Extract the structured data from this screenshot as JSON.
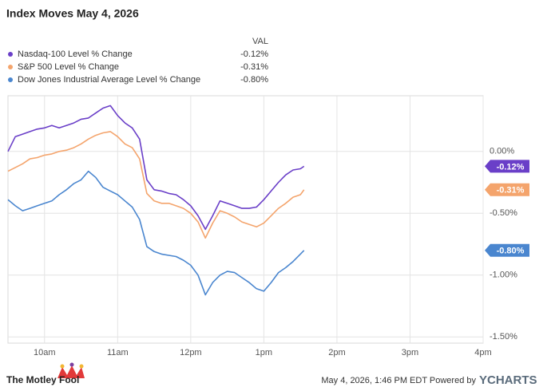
{
  "chart_data": {
    "type": "line",
    "title": "Index Moves May 4, 2026",
    "legend_header": "VAL",
    "x": [
      9.5,
      9.6,
      9.7,
      9.8,
      9.9,
      10.0,
      10.1,
      10.2,
      10.3,
      10.4,
      10.5,
      10.6,
      10.7,
      10.8,
      10.9,
      11.0,
      11.1,
      11.2,
      11.3,
      11.4,
      11.5,
      11.6,
      11.7,
      11.8,
      11.9,
      12.0,
      12.1,
      12.2,
      12.3,
      12.4,
      12.5,
      12.6,
      12.7,
      12.8,
      12.9,
      13.0,
      13.1,
      13.2,
      13.3,
      13.4,
      13.5,
      13.55
    ],
    "series": [
      {
        "name": "Nasdaq-100 Level % Change",
        "color": "#6a3fc8",
        "end_label": "-0.12%",
        "values": [
          0.0,
          0.12,
          0.14,
          0.16,
          0.18,
          0.19,
          0.21,
          0.19,
          0.21,
          0.23,
          0.26,
          0.27,
          0.31,
          0.35,
          0.37,
          0.29,
          0.23,
          0.19,
          0.1,
          -0.23,
          -0.31,
          -0.32,
          -0.34,
          -0.35,
          -0.39,
          -0.44,
          -0.52,
          -0.63,
          -0.52,
          -0.4,
          -0.42,
          -0.44,
          -0.46,
          -0.46,
          -0.45,
          -0.39,
          -0.32,
          -0.25,
          -0.19,
          -0.15,
          -0.14,
          -0.12
        ]
      },
      {
        "name": "S&P 500 Level % Change",
        "color": "#f4a46c",
        "end_label": "-0.31%",
        "values": [
          -0.16,
          -0.13,
          -0.1,
          -0.06,
          -0.05,
          -0.03,
          -0.02,
          0.0,
          0.01,
          0.03,
          0.06,
          0.1,
          0.13,
          0.15,
          0.16,
          0.12,
          0.06,
          0.03,
          -0.06,
          -0.34,
          -0.4,
          -0.42,
          -0.42,
          -0.44,
          -0.46,
          -0.5,
          -0.57,
          -0.7,
          -0.58,
          -0.48,
          -0.5,
          -0.53,
          -0.57,
          -0.59,
          -0.61,
          -0.58,
          -0.52,
          -0.46,
          -0.42,
          -0.37,
          -0.35,
          -0.31
        ]
      },
      {
        "name": "Dow Jones Industrial Average Level % Change",
        "color": "#4a86cf",
        "end_label": "-0.80%",
        "values": [
          -0.39,
          -0.44,
          -0.48,
          -0.46,
          -0.44,
          -0.42,
          -0.4,
          -0.35,
          -0.31,
          -0.26,
          -0.23,
          -0.16,
          -0.21,
          -0.29,
          -0.32,
          -0.35,
          -0.4,
          -0.45,
          -0.55,
          -0.77,
          -0.81,
          -0.83,
          -0.84,
          -0.85,
          -0.88,
          -0.92,
          -1.0,
          -1.16,
          -1.06,
          -1.0,
          -0.97,
          -0.98,
          -1.02,
          -1.06,
          -1.11,
          -1.13,
          -1.06,
          -0.98,
          -0.94,
          -0.89,
          -0.83,
          -0.8
        ]
      }
    ],
    "xlim": [
      9.5,
      16
    ],
    "xticks": [
      {
        "value": 10,
        "label": "10am"
      },
      {
        "value": 11,
        "label": "11am"
      },
      {
        "value": 12,
        "label": "12pm"
      },
      {
        "value": 13,
        "label": "1pm"
      },
      {
        "value": 14,
        "label": "2pm"
      },
      {
        "value": 15,
        "label": "3pm"
      },
      {
        "value": 16,
        "label": "4pm"
      }
    ],
    "ylim": [
      0.45,
      -1.55
    ],
    "yticks": [
      {
        "value": 0,
        "label": "0.00%"
      },
      {
        "value": -0.5,
        "label": "-0.50%"
      },
      {
        "value": -1,
        "label": "-1.00%"
      },
      {
        "value": -1.5,
        "label": "-1.50%"
      }
    ],
    "grid": true,
    "logo": "The Motley Fool",
    "source": "May 4, 2026, 1:46 PM EDT Powered by",
    "brand": "YCHARTS"
  }
}
